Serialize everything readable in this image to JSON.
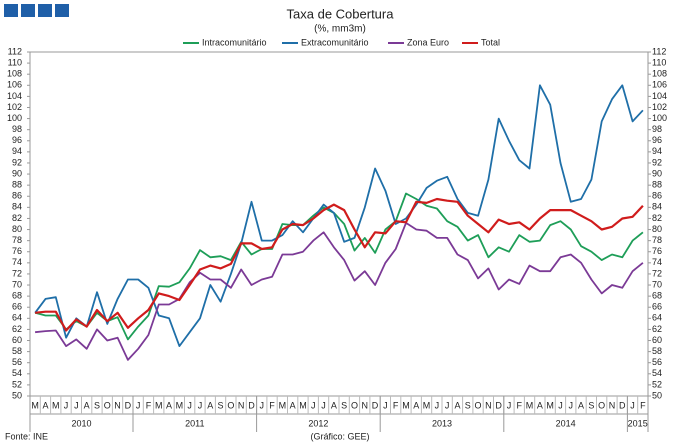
{
  "chart_data": {
    "type": "line",
    "title": "Taxa de Cobertura",
    "subtitle": "(%, mm3m)",
    "categories": [
      "M",
      "A",
      "M",
      "J",
      "J",
      "A",
      "S",
      "O",
      "N",
      "D",
      "J",
      "F",
      "M",
      "A",
      "M",
      "J",
      "J",
      "A",
      "S",
      "O",
      "N",
      "D",
      "J",
      "F",
      "M",
      "A",
      "M",
      "J",
      "J",
      "A",
      "S",
      "O",
      "N",
      "D",
      "J",
      "F",
      "M",
      "A",
      "M",
      "J",
      "J",
      "A",
      "S",
      "O",
      "N",
      "D",
      "J",
      "F",
      "M",
      "A",
      "M",
      "J",
      "J",
      "A",
      "S",
      "O",
      "N",
      "D",
      "J",
      "F"
    ],
    "years": [
      "2010",
      "2011",
      "2012",
      "2013",
      "2014",
      "2015"
    ],
    "series": [
      {
        "name": "Intracomunitário",
        "color": "#1e9e58",
        "values": [
          65,
          64.5,
          64.5,
          62,
          63.5,
          62.5,
          65,
          63.5,
          64.2,
          60.2,
          62.5,
          64.5,
          69.8,
          69.7,
          70.5,
          73,
          76.3,
          75,
          75.2,
          74.5,
          77.8,
          75.5,
          76.5,
          76.5,
          81,
          80.8,
          80.8,
          82.5,
          84,
          83,
          81,
          76.2,
          78.5,
          75.8,
          80,
          81.5,
          86.5,
          85.5,
          84.3,
          83.8,
          81.5,
          80.5,
          78,
          79,
          75,
          76.8,
          76,
          79,
          77.8,
          78,
          80.8,
          81.5,
          80,
          77,
          76,
          74.5,
          75.5,
          75,
          78,
          79.5
        ]
      },
      {
        "name": "Extracomunitário",
        "color": "#1f6fa8",
        "values": [
          65,
          67.5,
          67.8,
          60.5,
          64,
          62.5,
          68.7,
          63,
          67.5,
          71,
          71,
          69.5,
          64.5,
          64,
          59,
          61.5,
          64,
          70,
          67,
          72,
          77.5,
          85,
          78,
          78,
          79,
          81.5,
          79.5,
          82,
          84.5,
          83,
          77.8,
          78.5,
          84,
          91,
          87,
          81,
          82,
          84.5,
          87.5,
          88.8,
          89.5,
          85.5,
          83,
          82.5,
          89,
          100,
          96,
          92.5,
          91,
          106,
          102.5,
          92,
          85,
          85.5,
          89,
          99.5,
          103.5,
          106,
          99.5,
          101.5
        ]
      },
      {
        "name": "Zona Euro",
        "color": "#7b3a96",
        "values": [
          61.5,
          61.7,
          61.8,
          59,
          60.2,
          58.5,
          62,
          60,
          60.5,
          56.5,
          58.5,
          61,
          66.5,
          66.5,
          67.5,
          70.5,
          72.2,
          71,
          71,
          69.5,
          72.8,
          70,
          71,
          71.5,
          75.5,
          75.5,
          76,
          78,
          79.5,
          76.8,
          74.5,
          70.8,
          72.5,
          70,
          74,
          76.5,
          81.2,
          80,
          79.8,
          78.5,
          78.5,
          75.5,
          74.5,
          71.2,
          73,
          69.2,
          71,
          70.2,
          73.5,
          72.5,
          72.5,
          75,
          75.5,
          74,
          71,
          68.5,
          70,
          69.5,
          72.5,
          74
        ]
      },
      {
        "name": "Total",
        "color": "#d01c1c",
        "values": [
          65,
          65.2,
          65.2,
          61.8,
          63.8,
          62.5,
          65.5,
          63.5,
          65,
          62.3,
          64,
          65.5,
          68.5,
          68,
          67.3,
          70,
          72.8,
          73.5,
          73,
          73.8,
          77.5,
          77.5,
          76.5,
          76.8,
          80,
          81,
          80.8,
          82,
          83.5,
          84.5,
          83.5,
          80,
          76.8,
          79.5,
          79.3,
          81.5,
          81.3,
          85,
          84.8,
          85.5,
          85.2,
          85,
          82.5,
          81,
          79.5,
          81.8,
          81,
          81.3,
          80,
          82,
          83.5,
          83.5,
          83.5,
          82.5,
          81.5,
          80,
          80.5,
          82,
          82.3,
          84.3
        ]
      }
    ],
    "ylim": [
      50,
      112
    ],
    "yticks": [
      50,
      52,
      54,
      56,
      58,
      60,
      62,
      64,
      66,
      68,
      70,
      72,
      74,
      76,
      78,
      80,
      82,
      84,
      86,
      88,
      90,
      92,
      94,
      96,
      98,
      100,
      102,
      104,
      106,
      108,
      110,
      112
    ],
    "source": "Fonte: INE",
    "credit": "(Gráfico: GEE)"
  }
}
